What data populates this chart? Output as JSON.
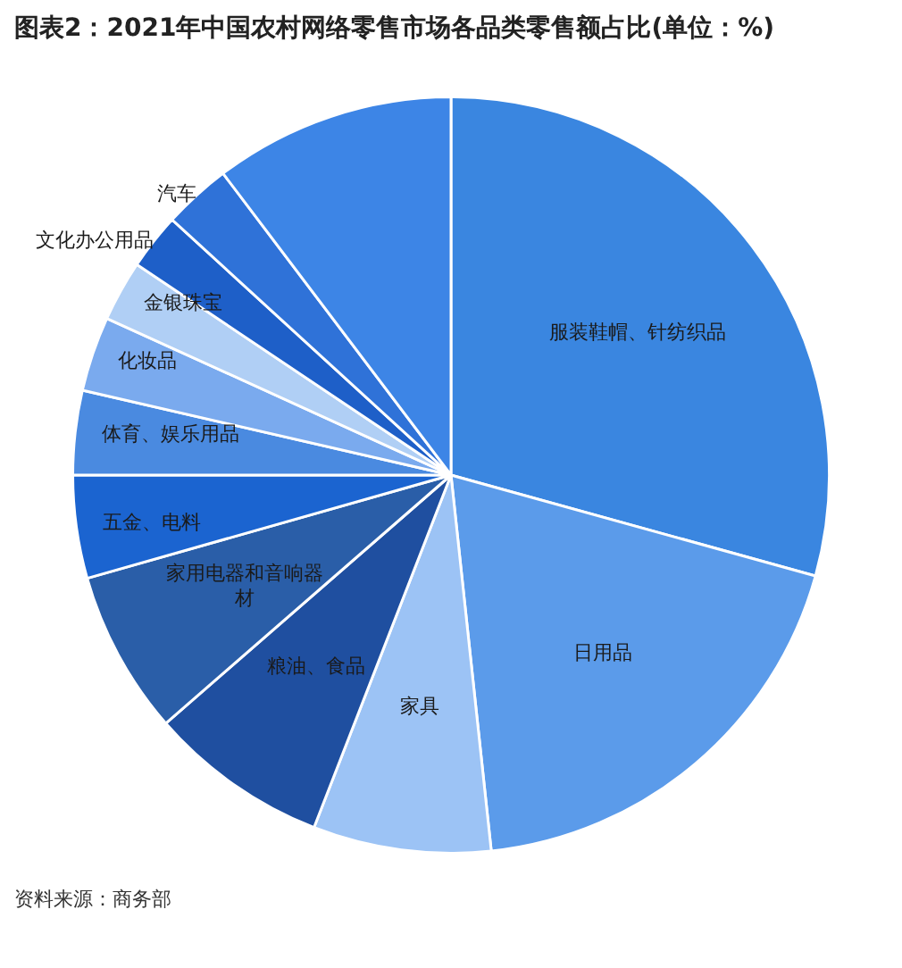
{
  "chart_data": {
    "type": "pie",
    "title": "图表2：2021年中国农村网络零售市场各品类零售额占比(单位：%)",
    "categories": [
      "服装鞋帽、针纺织品",
      "日用品",
      "家具",
      "粮油、食品",
      "家用电器和音响器材",
      "五金、电料",
      "体育、娱乐用品",
      "化妆品",
      "金银珠宝",
      "文化办公用品",
      "汽车",
      null
    ],
    "values": [
      29.3,
      19.0,
      7.6,
      7.7,
      7.0,
      4.4,
      3.6,
      3.2,
      2.6,
      2.4,
      2.9,
      10.3
    ],
    "colors": [
      "#3a86e0",
      "#5b9bea",
      "#9cc3f5",
      "#1f4fa0",
      "#2a5ea8",
      "#1b64d0",
      "#4a8ae0",
      "#7aaaee",
      "#b0cff5",
      "#1e5fc8",
      "#2f72d8",
      "#3d85e6"
    ],
    "legend": false,
    "annotations": [
      "资料来源：商务部"
    ]
  }
}
